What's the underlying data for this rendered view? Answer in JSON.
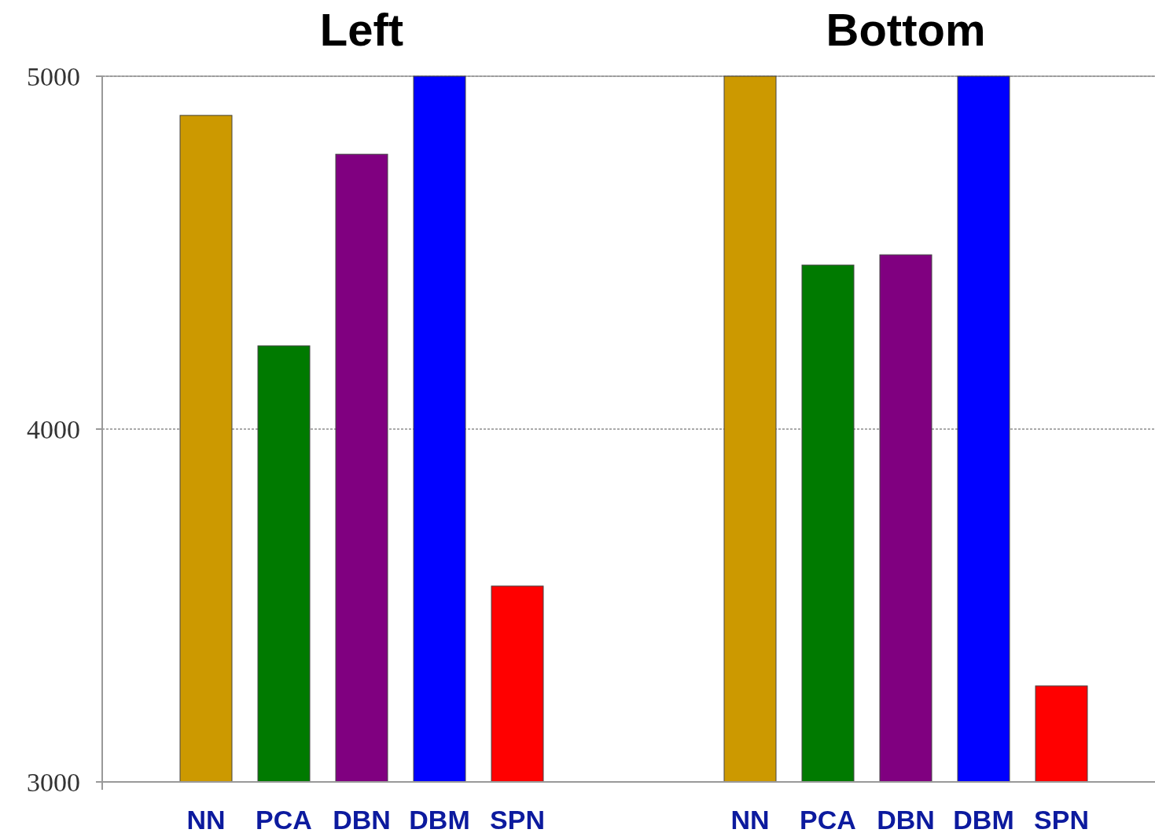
{
  "chart_data": [
    {
      "type": "bar",
      "title": "Left",
      "categories": [
        "NN",
        "PCA",
        "DBN",
        "DBM",
        "SPN"
      ],
      "values": [
        4889,
        4236,
        4779,
        5000,
        3555
      ],
      "colors": [
        "#cc9900",
        "#007a00",
        "#800080",
        "#0000ff",
        "#ff0000"
      ],
      "ylim": [
        3000,
        5000
      ],
      "yticks": [
        3000,
        4000,
        5000
      ],
      "grid": "y"
    },
    {
      "type": "bar",
      "title": "Bottom",
      "categories": [
        "NN",
        "PCA",
        "DBN",
        "DBM",
        "SPN"
      ],
      "values": [
        5000,
        4465,
        4494,
        5000,
        3272
      ],
      "colors": [
        "#cc9900",
        "#007a00",
        "#800080",
        "#0000ff",
        "#ff0000"
      ],
      "ylim": [
        3000,
        5000
      ],
      "yticks": [
        3000,
        4000,
        5000
      ],
      "grid": "y",
      "tick_labels": "x"
    }
  ]
}
